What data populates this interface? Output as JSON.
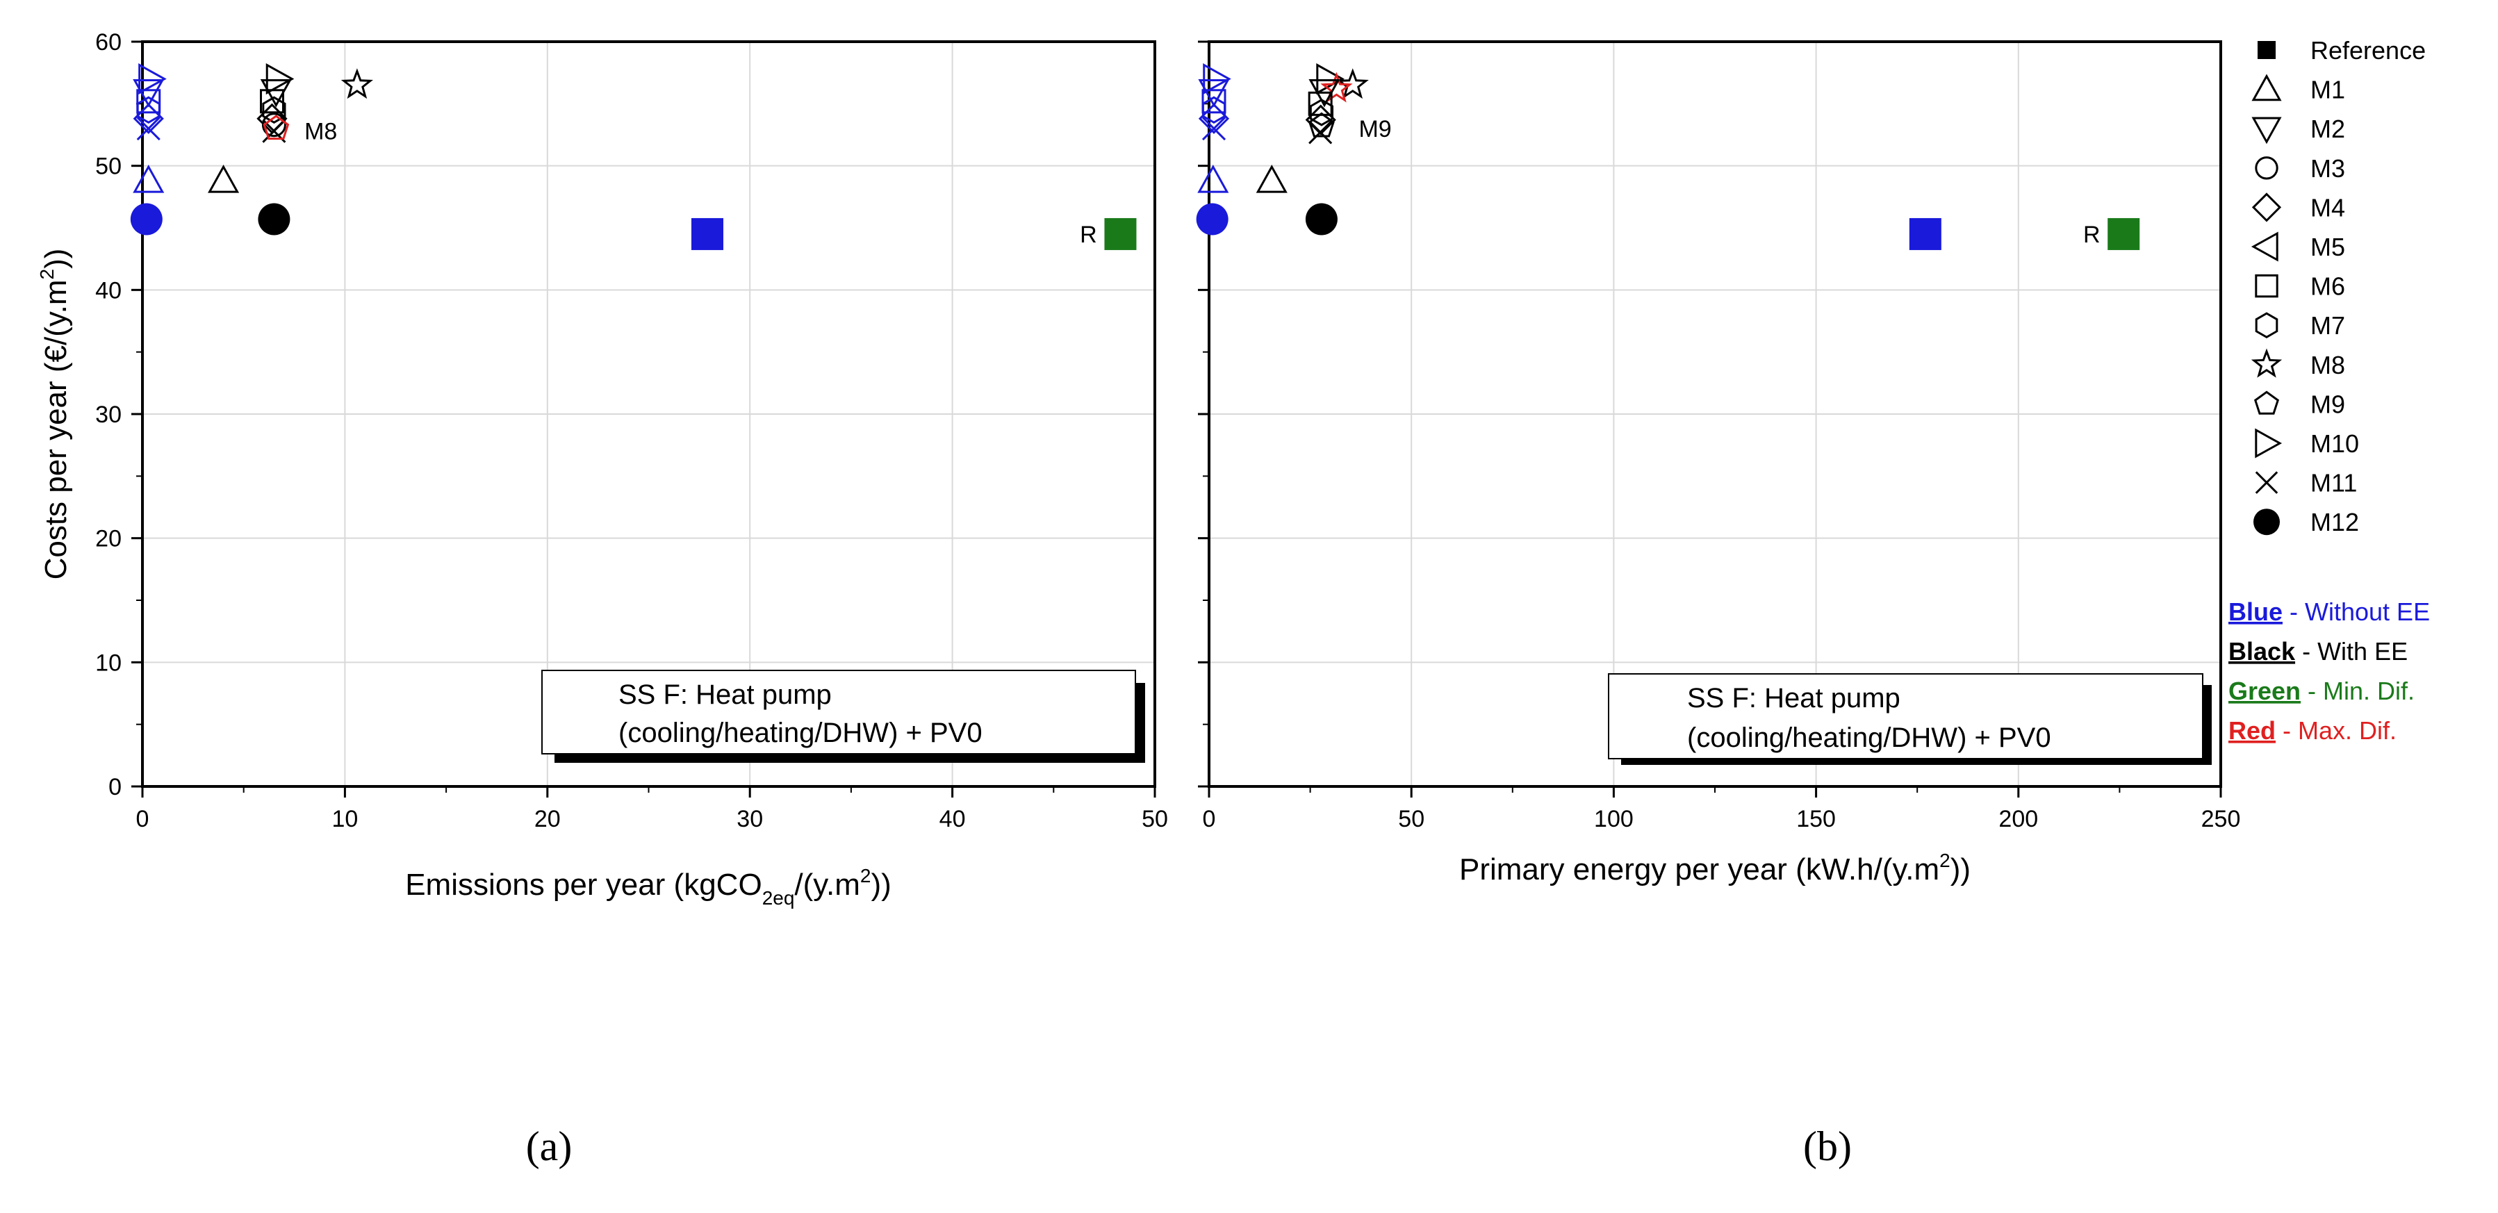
{
  "chart_data": [
    {
      "type": "scatter",
      "panel": "(a)",
      "xlabel": "Emissions per year (kgCO2eq/(y.m2))",
      "xlabel_parts": [
        "Emissions per year (kgCO",
        "2eq",
        "/(y.m",
        "2",
        "))"
      ],
      "ylabel": "Costs per year (€/(y.m2))",
      "ylabel_parts": [
        "Costs per year (€/(y.m",
        "2",
        "))"
      ],
      "xlim": [
        0,
        50
      ],
      "ylim": [
        0,
        60
      ],
      "xticks": [
        0,
        10,
        20,
        30,
        40,
        50
      ],
      "yticks": [
        0,
        10,
        20,
        30,
        40,
        50,
        60
      ],
      "grid": true,
      "box_text": [
        "SS F: Heat pump",
        "(cooling/heating/DHW) + PV0"
      ],
      "annotations": [
        {
          "text": "R",
          "x": 46.3,
          "y": 44.5
        },
        {
          "text": "M8",
          "x": 8.0,
          "y": 52.8
        }
      ],
      "points": [
        {
          "marker": "square",
          "color": "green",
          "x": 48.3,
          "y": 44.5
        },
        {
          "marker": "square",
          "color": "blue",
          "x": 27.9,
          "y": 44.5
        },
        {
          "marker": "circle-filled",
          "color": "black",
          "x": 6.5,
          "y": 45.7
        },
        {
          "marker": "circle-filled",
          "color": "blue",
          "x": 0.2,
          "y": 45.7
        },
        {
          "marker": "triangle-up",
          "color": "black",
          "x": 4.0,
          "y": 48.8
        },
        {
          "marker": "triangle-up",
          "color": "blue",
          "x": 0.3,
          "y": 48.8
        },
        {
          "marker": "star",
          "color": "black",
          "x": 10.6,
          "y": 56.5
        },
        {
          "marker": "triangle-right",
          "color": "black",
          "x": 6.7,
          "y": 57.0
        },
        {
          "marker": "triangle-down",
          "color": "black",
          "x": 6.6,
          "y": 56.0
        },
        {
          "marker": "square-open",
          "color": "black",
          "x": 6.4,
          "y": 55.2
        },
        {
          "marker": "hexagon",
          "color": "black",
          "x": 6.5,
          "y": 54.5
        },
        {
          "marker": "diamond",
          "color": "black",
          "x": 6.4,
          "y": 53.8
        },
        {
          "marker": "circle-open",
          "color": "black",
          "x": 6.5,
          "y": 53.3
        },
        {
          "marker": "cross",
          "color": "black",
          "x": 6.5,
          "y": 52.8
        },
        {
          "marker": "pentagon",
          "color": "red",
          "x": 6.6,
          "y": 53.0
        },
        {
          "marker": "triangle-right",
          "color": "blue",
          "x": 0.4,
          "y": 57.0
        },
        {
          "marker": "triangle-down",
          "color": "blue",
          "x": 0.3,
          "y": 56.0
        },
        {
          "marker": "square-open",
          "color": "blue",
          "x": 0.3,
          "y": 55.2
        },
        {
          "marker": "hexagon",
          "color": "blue",
          "x": 0.3,
          "y": 54.5
        },
        {
          "marker": "diamond",
          "color": "blue",
          "x": 0.3,
          "y": 53.8
        },
        {
          "marker": "cross",
          "color": "blue",
          "x": 0.3,
          "y": 53.0
        }
      ]
    },
    {
      "type": "scatter",
      "panel": "(b)",
      "xlabel": "Primary energy per year (kW.h/(y.m2))",
      "xlabel_parts": [
        "Primary energy per year (kW.h/(y.m",
        "2",
        "))"
      ],
      "xlim": [
        0,
        250
      ],
      "ylim": [
        0,
        60
      ],
      "xticks": [
        0,
        50,
        100,
        150,
        200,
        250
      ],
      "yticks": [
        0,
        10,
        20,
        30,
        40,
        50,
        60
      ],
      "grid": true,
      "box_text": [
        "SS F: Heat pump",
        "(cooling/heating/DHW) + PV0"
      ],
      "annotations": [
        {
          "text": "R",
          "x": 216.0,
          "y": 44.5
        },
        {
          "text": "M9",
          "x": 37.0,
          "y": 53.0
        }
      ],
      "points": [
        {
          "marker": "square",
          "color": "green",
          "x": 226.0,
          "y": 44.5
        },
        {
          "marker": "square",
          "color": "blue",
          "x": 177.0,
          "y": 44.5
        },
        {
          "marker": "circle-filled",
          "color": "black",
          "x": 27.8,
          "y": 45.7
        },
        {
          "marker": "circle-filled",
          "color": "blue",
          "x": 0.8,
          "y": 45.7
        },
        {
          "marker": "triangle-up",
          "color": "black",
          "x": 15.5,
          "y": 48.8
        },
        {
          "marker": "triangle-up",
          "color": "blue",
          "x": 1.0,
          "y": 48.8
        },
        {
          "marker": "star",
          "color": "black",
          "x": 35.5,
          "y": 56.5
        },
        {
          "marker": "triangle-right",
          "color": "black",
          "x": 29.5,
          "y": 57.0
        },
        {
          "marker": "star",
          "color": "red",
          "x": 31.5,
          "y": 56.2
        },
        {
          "marker": "triangle-down",
          "color": "black",
          "x": 28.5,
          "y": 56.0
        },
        {
          "marker": "square-open",
          "color": "black",
          "x": 27.5,
          "y": 55.0
        },
        {
          "marker": "hexagon",
          "color": "black",
          "x": 27.8,
          "y": 54.3
        },
        {
          "marker": "diamond",
          "color": "black",
          "x": 27.6,
          "y": 53.7
        },
        {
          "marker": "pentagon",
          "color": "black",
          "x": 27.8,
          "y": 53.2
        },
        {
          "marker": "cross",
          "color": "black",
          "x": 27.5,
          "y": 52.7
        },
        {
          "marker": "triangle-right",
          "color": "blue",
          "x": 1.5,
          "y": 57.0
        },
        {
          "marker": "triangle-down",
          "color": "blue",
          "x": 1.2,
          "y": 56.0
        },
        {
          "marker": "square-open",
          "color": "blue",
          "x": 1.2,
          "y": 55.2
        },
        {
          "marker": "hexagon",
          "color": "blue",
          "x": 1.2,
          "y": 54.5
        },
        {
          "marker": "diamond",
          "color": "blue",
          "x": 1.2,
          "y": 53.8
        },
        {
          "marker": "cross",
          "color": "blue",
          "x": 1.2,
          "y": 53.0
        }
      ]
    }
  ],
  "legend": {
    "items": [
      {
        "marker": "square",
        "label": "Reference"
      },
      {
        "marker": "triangle-up",
        "label": "M1"
      },
      {
        "marker": "triangle-down",
        "label": "M2"
      },
      {
        "marker": "circle-open",
        "label": "M3"
      },
      {
        "marker": "diamond",
        "label": "M4"
      },
      {
        "marker": "triangle-left",
        "label": "M5"
      },
      {
        "marker": "square-open",
        "label": "M6"
      },
      {
        "marker": "hexagon",
        "label": "M7"
      },
      {
        "marker": "star",
        "label": "M8"
      },
      {
        "marker": "pentagon",
        "label": "M9"
      },
      {
        "marker": "triangle-right",
        "label": "M10"
      },
      {
        "marker": "cross",
        "label": "M11"
      },
      {
        "marker": "circle-filled",
        "label": "M12"
      }
    ],
    "color_key": [
      {
        "name": "Blue",
        "desc": " - Without EE",
        "color": "#1a1adb",
        "text_color": "#1a1adb"
      },
      {
        "name": "Black",
        "desc": " - With EE",
        "color": "#000000",
        "text_color": "#000000"
      },
      {
        "name": "Green",
        "desc": " - Min. Dif.",
        "color": "#1a7a1a",
        "text_color": "#1a7a1a"
      },
      {
        "name": "Red",
        "desc": " - Max. Dif.",
        "color": "#e02020",
        "text_color": "#e02020"
      }
    ]
  },
  "captions": [
    "(a)",
    "(b)"
  ],
  "colors": {
    "blue": "#1a1adb",
    "black": "#000000",
    "green": "#1a7a1a",
    "red": "#e02020",
    "grid": "#d9d9d9"
  }
}
